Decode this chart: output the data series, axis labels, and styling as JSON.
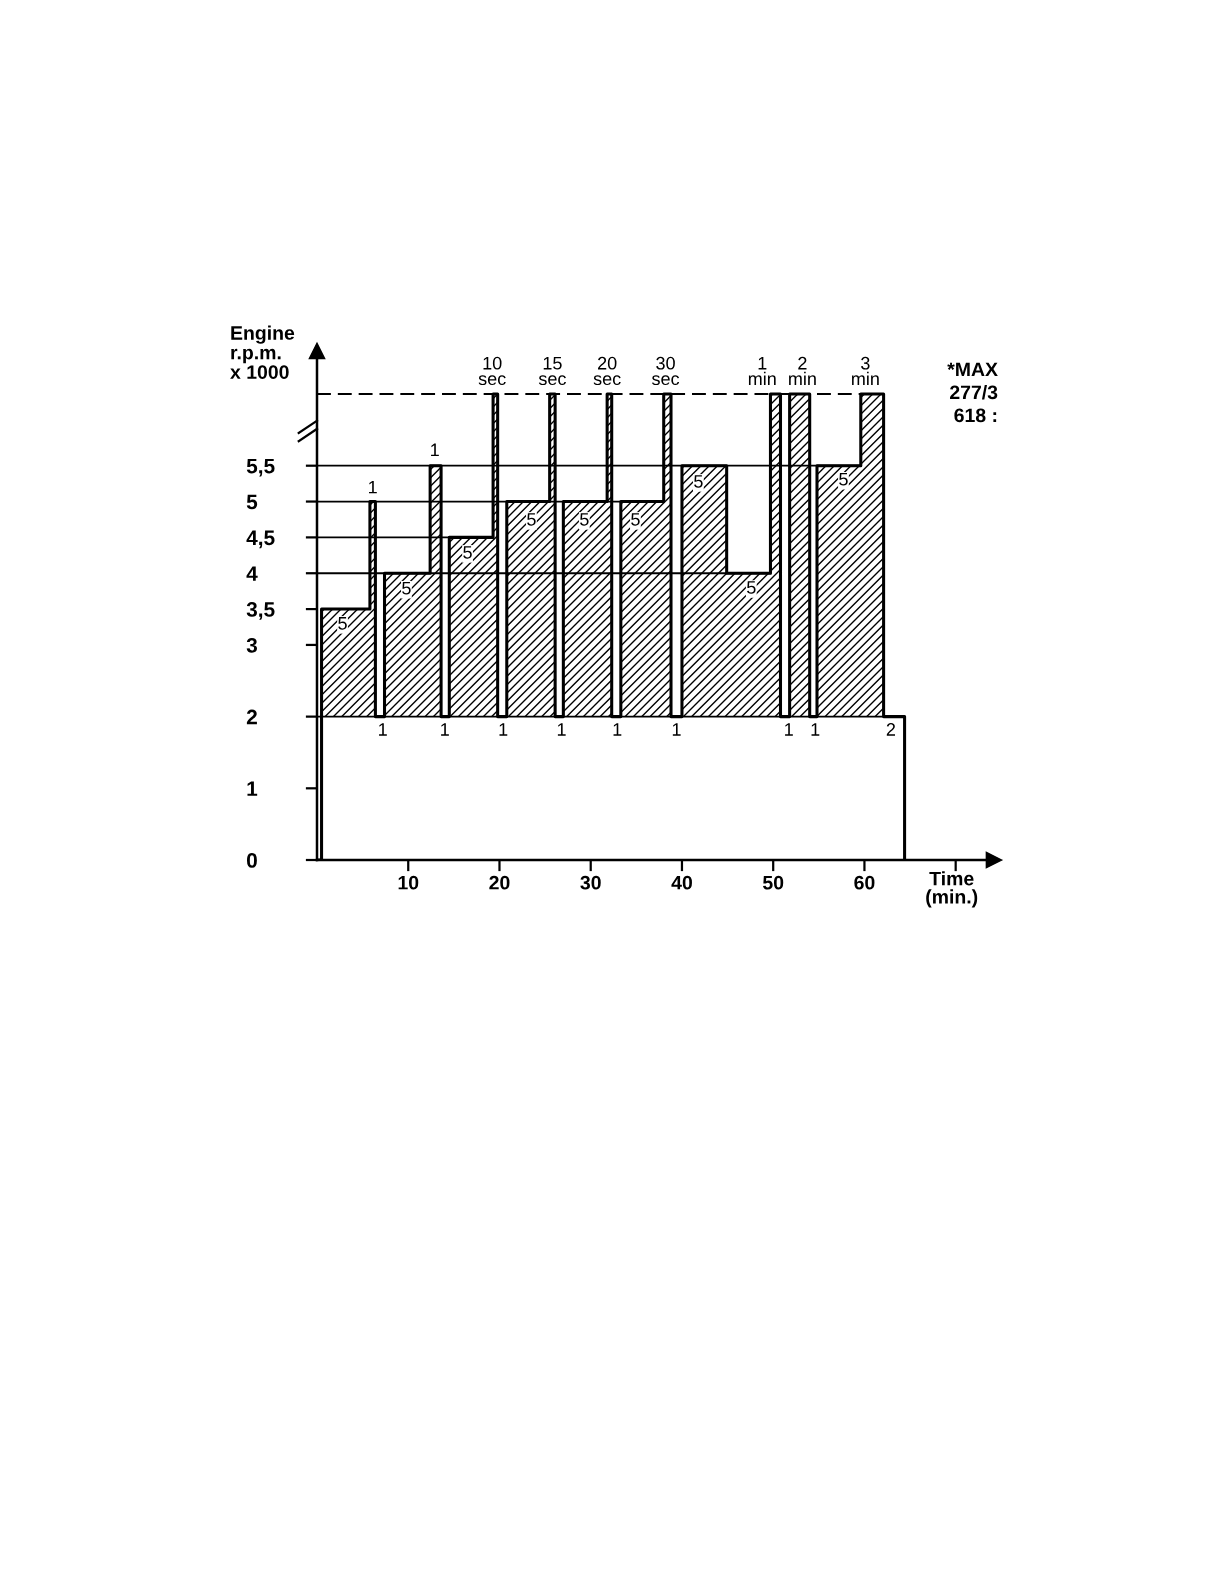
{
  "chart_data": {
    "type": "step",
    "color": "#000000",
    "ylabel": "Engine\nr.p.m.\nx 1000",
    "xlabel": "Time\n(min.)",
    "x": [
      0,
      0.5,
      5.8,
      6.4,
      7.4,
      12.4,
      13.6,
      14.5,
      19.3,
      19.8,
      20.8,
      25.5,
      26.1,
      27.0,
      31.8,
      32.3,
      33.3,
      38.0,
      38.8,
      40.0,
      44.9,
      49.7,
      50.8,
      51.8,
      54.0,
      54.8,
      59.6,
      62.1,
      64.4
    ],
    "values": [
      0,
      3.5,
      5,
      2,
      4,
      5.5,
      2,
      4.5,
      6.5,
      2,
      5,
      6.5,
      2,
      5,
      6.5,
      2,
      5,
      6.5,
      2,
      5.5,
      4,
      6.5,
      2,
      6.5,
      2,
      5.5,
      6.5,
      2,
      0
    ],
    "xlim": [
      0,
      74.2
    ],
    "ylim": [
      0,
      7.1
    ],
    "xticks": [
      10,
      20,
      30,
      40,
      50,
      60,
      {
        "value": 70,
        "label": null
      }
    ],
    "yticks": [
      0,
      1,
      2,
      3,
      {
        "value": 3.5,
        "label": "3,5"
      },
      4,
      {
        "value": 4.5,
        "label": "4,5"
      },
      5,
      {
        "value": 5.5,
        "label": "5,5"
      }
    ],
    "ref_lines": [
      {
        "axis": "y",
        "value": 2
      },
      {
        "axis": "y",
        "value": 4
      },
      {
        "axis": "y",
        "value": 4.5
      },
      {
        "axis": "y",
        "value": 5
      },
      {
        "axis": "y",
        "value": 5.5
      },
      {
        "axis": "y",
        "value": 6.5,
        "line_style": "dashed"
      }
    ],
    "annotations": [
      {
        "text": "1",
        "x": 6.1,
        "y": 5.18
      },
      {
        "text": "1",
        "x": 12.9,
        "y": 5.7
      },
      {
        "text": "10\nsec",
        "x": 19.2,
        "y": 6.8
      },
      {
        "text": "15\nsec",
        "x": 25.8,
        "y": 6.8
      },
      {
        "text": "20\nsec",
        "x": 31.8,
        "y": 6.8
      },
      {
        "text": "30\nsec",
        "x": 38.2,
        "y": 6.8
      },
      {
        "text": "1\nmin",
        "x": 48.8,
        "y": 6.8
      },
      {
        "text": "2\nmin",
        "x": 53.2,
        "y": 6.8
      },
      {
        "text": "3\nmin",
        "x": 60.1,
        "y": 6.8
      },
      {
        "text": "5",
        "x": 2.8,
        "y": 3.28
      },
      {
        "text": "5",
        "x": 9.8,
        "y": 3.77
      },
      {
        "text": "5",
        "x": 16.5,
        "y": 4.27
      },
      {
        "text": "5",
        "x": 23.5,
        "y": 4.73
      },
      {
        "text": "5",
        "x": 29.3,
        "y": 4.73
      },
      {
        "text": "5",
        "x": 34.9,
        "y": 4.73
      },
      {
        "text": "5",
        "x": 41.8,
        "y": 5.26
      },
      {
        "text": "5",
        "x": 47.6,
        "y": 3.78
      },
      {
        "text": "5",
        "x": 57.7,
        "y": 5.29
      },
      {
        "text": "1",
        "x": 7.2,
        "y": 1.8
      },
      {
        "text": "1",
        "x": 14.0,
        "y": 1.8
      },
      {
        "text": "1",
        "x": 20.4,
        "y": 1.8
      },
      {
        "text": "1",
        "x": 26.8,
        "y": 1.8
      },
      {
        "text": "1",
        "x": 32.9,
        "y": 1.8
      },
      {
        "text": "1",
        "x": 39.4,
        "y": 1.8
      },
      {
        "text": "1",
        "x": 51.7,
        "y": 1.8
      },
      {
        "text": "1",
        "x": 54.6,
        "y": 1.8
      },
      {
        "text": "2",
        "x": 62.9,
        "y": 1.8
      },
      "*MAX",
      "277/3",
      "618 :"
    ]
  }
}
